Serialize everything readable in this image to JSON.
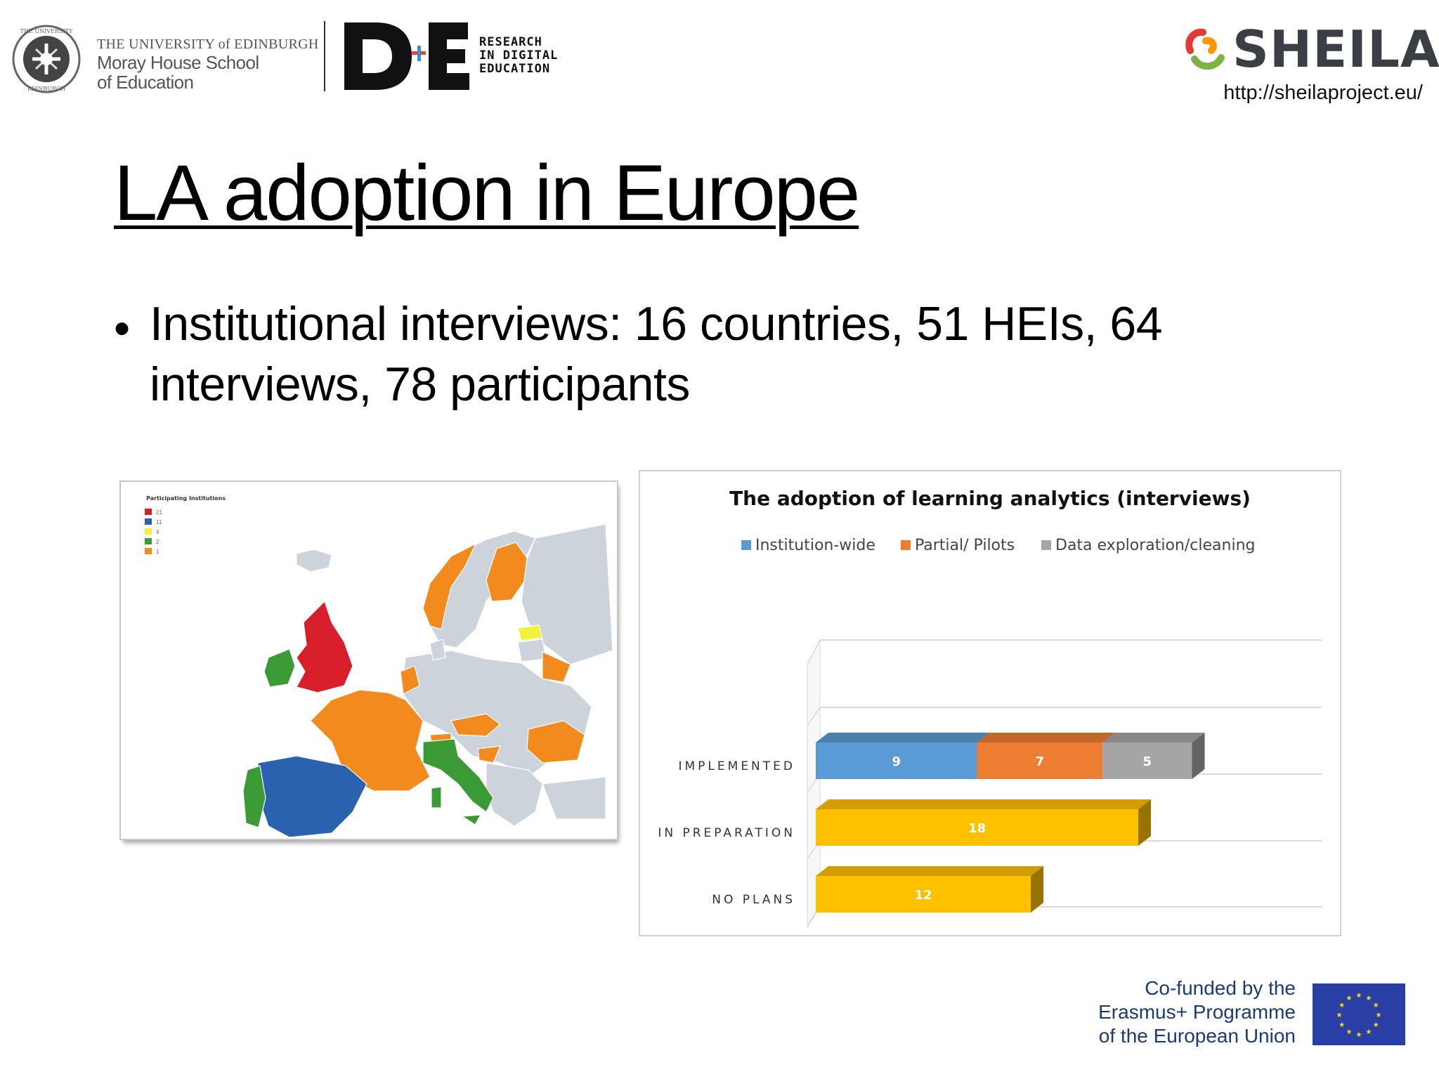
{
  "header": {
    "university": {
      "line1": "THE UNIVERSITY of EDINBURGH",
      "line2": "Moray House School",
      "line3": "of Education",
      "crest_icon": "university-crest-icon"
    },
    "de_logo": {
      "letters": "D+E",
      "tagline": [
        "RESEARCH",
        "IN DIGITAL",
        "EDUCATION"
      ]
    },
    "sheila": {
      "name": "SHEILA",
      "url": "http://sheilaproject.eu/",
      "colors": {
        "red": "#e53935",
        "orange": "#ff9800",
        "green": "#7cb342",
        "text": "#3b3f45"
      }
    }
  },
  "slide": {
    "title": "LA adoption in Europe",
    "bullet": "Institutional interviews: 16 countries, 51 HEIs, 64 interviews, 78 participants"
  },
  "map": {
    "title": "Participating Institutions",
    "legend": [
      {
        "color": "#d81e2a",
        "label": "21"
      },
      {
        "color": "#2b62b0",
        "label": "11"
      },
      {
        "color": "#f2f23a",
        "label": "4"
      },
      {
        "color": "#3a9a35",
        "label": "2"
      },
      {
        "color": "#f28a1e",
        "label": "1"
      }
    ],
    "base_color": "#cdd3da"
  },
  "chart_data": {
    "type": "bar",
    "orientation": "horizontal",
    "stacked": true,
    "style": "3d",
    "title": "The adoption of learning analytics (interviews)",
    "categories": [
      "IMPLEMENTED",
      "IN PREPARATION",
      "NO PLANS"
    ],
    "series": [
      {
        "name": "Institution-wide",
        "color": "#5b9bd5",
        "values": [
          9,
          null,
          null
        ]
      },
      {
        "name": "Partial/ Pilots",
        "color": "#ed7d31",
        "values": [
          7,
          null,
          null
        ]
      },
      {
        "name": "Data exploration/cleaning",
        "color": "#a5a5a5",
        "values": [
          5,
          null,
          null
        ]
      },
      {
        "name": "",
        "color": "#ffc000",
        "values": [
          null,
          18,
          12
        ]
      }
    ],
    "xlim": [
      0,
      26
    ],
    "legend_position": "top",
    "grid": true
  },
  "footer": {
    "erasmus": [
      "Co-funded by the",
      "Erasmus+ Programme",
      "of the European Union"
    ],
    "flag_color": "#2a3fa6",
    "star_color": "#ffdd00"
  }
}
